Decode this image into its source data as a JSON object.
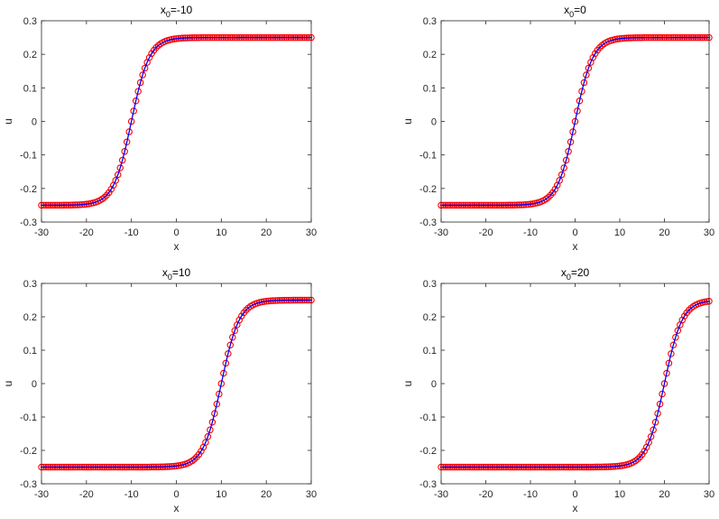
{
  "chart_data": [
    {
      "type": "line",
      "title": {
        "base": "x",
        "sub": "0",
        "rest": "=-10"
      },
      "xlabel": "x",
      "ylabel": "u",
      "xlim": [
        -30,
        30
      ],
      "ylim": [
        -0.3,
        0.3
      ],
      "xticks": [
        -30,
        -20,
        -10,
        0,
        10,
        20,
        30
      ],
      "yticks": [
        -0.3,
        -0.2,
        -0.1,
        0,
        0.1,
        0.2,
        0.3
      ],
      "xtick_labels": [
        "-30",
        "-20",
        "-10",
        "0",
        "10",
        "20",
        "30"
      ],
      "ytick_labels": [
        "-0.3",
        "-0.2",
        "-0.1",
        "0",
        "0.1",
        "0.2",
        "0.3"
      ],
      "grid": false,
      "series": [
        {
          "style": "solid line",
          "color": "#0000ff",
          "function": "0.25*tanh((x-(-10))/4)",
          "x0": -10,
          "amplitude": 0.25,
          "width": 4
        },
        {
          "style": "circle markers",
          "color": "#ff0000",
          "function": "0.25*tanh((x-(-10))/4)",
          "x0": -10,
          "amplitude": 0.25,
          "width": 4,
          "marker_count": 121
        }
      ]
    },
    {
      "type": "line",
      "title": {
        "base": "x",
        "sub": "0",
        "rest": "=0"
      },
      "xlabel": "x",
      "ylabel": "u",
      "xlim": [
        -30,
        30
      ],
      "ylim": [
        -0.3,
        0.3
      ],
      "xticks": [
        -30,
        -20,
        -10,
        0,
        10,
        20,
        30
      ],
      "yticks": [
        -0.3,
        -0.2,
        -0.1,
        0,
        0.1,
        0.2,
        0.3
      ],
      "xtick_labels": [
        "-30",
        "-20",
        "-10",
        "0",
        "10",
        "20",
        "30"
      ],
      "ytick_labels": [
        "-0.3",
        "-0.2",
        "-0.1",
        "0",
        "0.1",
        "0.2",
        "0.3"
      ],
      "grid": false,
      "series": [
        {
          "style": "solid line",
          "color": "#0000ff",
          "function": "0.25*tanh((x-0)/4)",
          "x0": 0,
          "amplitude": 0.25,
          "width": 4
        },
        {
          "style": "circle markers",
          "color": "#ff0000",
          "function": "0.25*tanh((x-0)/4)",
          "x0": 0,
          "amplitude": 0.25,
          "width": 4,
          "marker_count": 121
        }
      ]
    },
    {
      "type": "line",
      "title": {
        "base": "x",
        "sub": "0",
        "rest": "=10"
      },
      "xlabel": "x",
      "ylabel": "u",
      "xlim": [
        -30,
        30
      ],
      "ylim": [
        -0.3,
        0.3
      ],
      "xticks": [
        -30,
        -20,
        -10,
        0,
        10,
        20,
        30
      ],
      "yticks": [
        -0.3,
        -0.2,
        -0.1,
        0,
        0.1,
        0.2,
        0.3
      ],
      "xtick_labels": [
        "-30",
        "-20",
        "-10",
        "0",
        "10",
        "20",
        "30"
      ],
      "ytick_labels": [
        "-0.3",
        "-0.2",
        "-0.1",
        "0",
        "0.1",
        "0.2",
        "0.3"
      ],
      "grid": false,
      "series": [
        {
          "style": "solid line",
          "color": "#0000ff",
          "function": "0.25*tanh((x-10)/4)",
          "x0": 10,
          "amplitude": 0.25,
          "width": 4
        },
        {
          "style": "circle markers",
          "color": "#ff0000",
          "function": "0.25*tanh((x-10)/4)",
          "x0": 10,
          "amplitude": 0.25,
          "width": 4,
          "marker_count": 121
        }
      ]
    },
    {
      "type": "line",
      "title": {
        "base": "x",
        "sub": "0",
        "rest": "=20"
      },
      "xlabel": "x",
      "ylabel": "u",
      "xlim": [
        -30,
        30
      ],
      "ylim": [
        -0.3,
        0.3
      ],
      "xticks": [
        -30,
        -20,
        -10,
        0,
        10,
        20,
        30
      ],
      "yticks": [
        -0.3,
        -0.2,
        -0.1,
        0,
        0.1,
        0.2,
        0.3
      ],
      "xtick_labels": [
        "-30",
        "-20",
        "-10",
        "0",
        "10",
        "20",
        "30"
      ],
      "ytick_labels": [
        "-0.3",
        "-0.2",
        "-0.1",
        "0",
        "0.1",
        "0.2",
        "0.3"
      ],
      "grid": false,
      "series": [
        {
          "style": "solid line",
          "color": "#0000ff",
          "function": "0.25*tanh((x-20)/4)",
          "x0": 20,
          "amplitude": 0.25,
          "width": 4
        },
        {
          "style": "circle markers",
          "color": "#ff0000",
          "function": "0.25*tanh((x-20)/4)",
          "x0": 20,
          "amplitude": 0.25,
          "width": 4,
          "marker_count": 121
        }
      ]
    }
  ]
}
